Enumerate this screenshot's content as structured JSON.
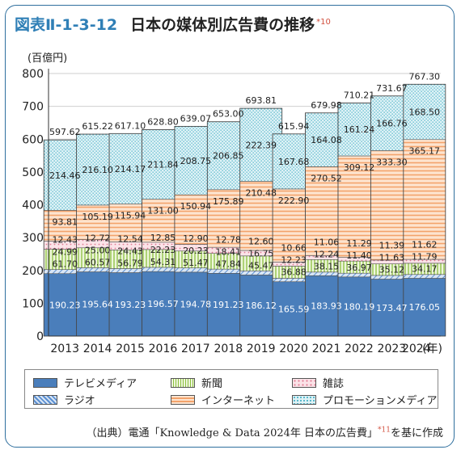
{
  "title": {
    "figure_no": "図表Ⅱ-1-3-12",
    "text": "日本の媒体別広告費の推移",
    "note": "*10"
  },
  "source": {
    "text": "（出典）電通「Knowledge & Data 2024年 日本の広告費」",
    "note": "*11",
    "suffix": "を基に作成"
  },
  "chart_data": {
    "type": "bar",
    "stacked": true,
    "ylabel": "(百億円)",
    "xunit": "(年)",
    "ylim": [
      0,
      800
    ],
    "yticks": [
      0,
      100,
      200,
      300,
      400,
      500,
      600,
      700,
      800
    ],
    "categories": [
      "2013",
      "2014",
      "2015",
      "2016",
      "2017",
      "2018",
      "2019",
      "2020",
      "2021",
      "2022",
      "2023",
      "2024"
    ],
    "series": [
      {
        "name": "テレビメディア",
        "color": "#4a7ebb",
        "values": [
          190.23,
          195.64,
          193.23,
          196.57,
          194.78,
          191.23,
          186.12,
          165.59,
          183.93,
          180.19,
          173.47,
          176.05
        ]
      },
      {
        "name": "ラジオ",
        "color": "#5b8fd1",
        "values": [
          12.43,
          12.72,
          12.54,
          12.85,
          12.9,
          12.78,
          12.6,
          10.66,
          11.06,
          11.29,
          11.39,
          11.62
        ]
      },
      {
        "name": "新聞",
        "color": "#8cbf3f",
        "values": [
          61.7,
          60.57,
          56.79,
          54.31,
          51.47,
          47.84,
          45.47,
          36.88,
          38.15,
          36.97,
          35.12,
          34.17
        ]
      },
      {
        "name": "雑誌",
        "color": "#f2a3b3",
        "values": [
          24.99,
          25.0,
          24.43,
          22.23,
          20.23,
          18.41,
          16.75,
          12.23,
          12.24,
          11.4,
          11.63,
          11.79
        ]
      },
      {
        "name": "インターネット",
        "color": "#f5a36a",
        "values": [
          93.81,
          105.19,
          115.94,
          131.0,
          150.94,
          175.89,
          210.48,
          222.9,
          270.52,
          309.12,
          333.3,
          365.17
        ]
      },
      {
        "name": "プロモーションメディア",
        "color": "#4fb3c8",
        "values": [
          214.46,
          216.1,
          214.17,
          211.84,
          208.75,
          206.85,
          222.39,
          167.68,
          164.08,
          161.24,
          166.76,
          168.5
        ]
      }
    ],
    "totals": [
      597.62,
      615.22,
      617.1,
      628.8,
      639.07,
      653.0,
      693.81,
      615.94,
      679.98,
      710.21,
      731.67,
      767.3
    ],
    "legend": [
      {
        "name": "テレビメディア",
        "pattern": "tv"
      },
      {
        "name": "新聞",
        "pattern": "news"
      },
      {
        "name": "雑誌",
        "pattern": "mag"
      },
      {
        "name": "ラジオ",
        "pattern": "radio"
      },
      {
        "name": "インターネット",
        "pattern": "net"
      },
      {
        "name": "プロモーションメディア",
        "pattern": "promo"
      }
    ]
  }
}
